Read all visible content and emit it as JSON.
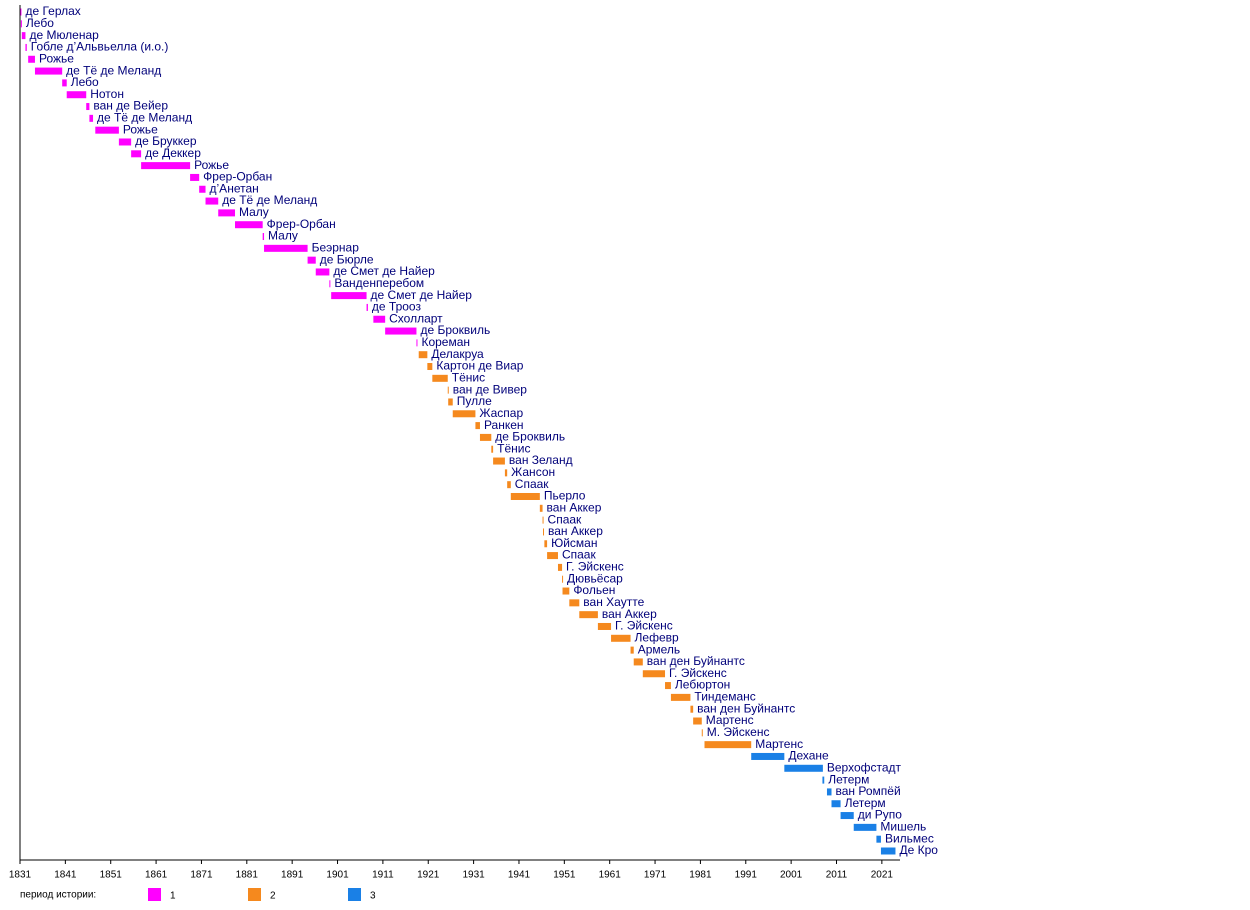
{
  "chart_data": {
    "type": "timeline",
    "categories": [
      "де Герлах",
      "Лебо",
      "де Мюленар",
      "Гобле д’Альвьелла (и.о.)",
      "Рожье",
      "де Тё де Меланд",
      "Лебо",
      "Нотон",
      "ван де Вейер",
      "де Тё де Меланд",
      "Рожье",
      "де Бруккер",
      "де Деккер",
      "Рожье",
      "Фрер-Орбан",
      "д’Анетан",
      "де Тё де Меланд",
      "Малу",
      "Фрер-Орбан",
      "Малу",
      "Беэрнар",
      "де Бюрле",
      "де Смет де Найер",
      "Ванденперебом",
      "де Смет де Найер",
      "де Трооз",
      "Схолларт",
      "де Броквиль",
      "Кореман",
      "Делакруа",
      "Картон де Виар",
      "Тёнис",
      "ван де Вивер",
      "Пулле",
      "Жаспар",
      "Ранкен",
      "де Броквиль",
      "Тёнис",
      "ван Зеланд",
      "Жансон",
      "Спаак",
      "Пьерло",
      "ван Аккер",
      "Спаак",
      "ван Аккер",
      "Юйсман",
      "Спаак",
      "Г. Эйскенс",
      "Дювьёсар",
      "Фольен",
      "ван Хаутте",
      "ван Аккер",
      "Г. Эйскенс",
      "Лефевр",
      "Армель",
      "ван ден Буйнантс",
      "Г. Эйскенс",
      "Лебюртон",
      "Тиндеманс",
      "ван ден Буйнантс",
      "Мартенс",
      "М. Эйскенс",
      "Мартенс",
      "Дехане",
      "Верхофстадт",
      "Летерм",
      "ван Ромпёй",
      "Летерм",
      "ди Рупо",
      "Мишель",
      "Вильмес",
      "Де Кро"
    ],
    "start": [
      1831.1,
      1831.2,
      1831.4,
      1832.2,
      1832.8,
      1834.3,
      1840.3,
      1841.3,
      1845.6,
      1846.3,
      1847.6,
      1852.8,
      1855.5,
      1857.7,
      1868.5,
      1870.5,
      1871.9,
      1874.7,
      1878.4,
      1884.5,
      1884.8,
      1894.4,
      1896.2,
      1899.2,
      1899.6,
      1907.4,
      1908.9,
      1911.5,
      1918.4,
      1918.9,
      1920.8,
      1921.9,
      1925.3,
      1925.4,
      1926.4,
      1931.4,
      1932.4,
      1934.9,
      1935.3,
      1937.9,
      1938.4,
      1939.2,
      1945.6,
      1946.2,
      1946.3,
      1946.6,
      1947.2,
      1949.6,
      1950.5,
      1950.6,
      1952.1,
      1954.3,
      1958.4,
      1961.3,
      1965.6,
      1966.3,
      1968.3,
      1973.2,
      1974.5,
      1978.8,
      1979.4,
      1981.3,
      1981.9,
      1992.2,
      1999.5,
      2007.9,
      2008.9,
      2009.9,
      2011.9,
      2014.8,
      2019.8,
      2020.8
    ],
    "end": [
      1831.2,
      1831.4,
      1832.2,
      1832.5,
      1834.3,
      1840.3,
      1841.3,
      1845.6,
      1846.3,
      1847.1,
      1852.8,
      1855.5,
      1857.7,
      1868.5,
      1870.5,
      1871.9,
      1874.7,
      1878.4,
      1884.5,
      1884.8,
      1894.4,
      1896.2,
      1899.2,
      1899.4,
      1907.4,
      1907.7,
      1911.5,
      1918.4,
      1918.6,
      1920.8,
      1921.9,
      1925.3,
      1925.4,
      1926.4,
      1931.4,
      1932.4,
      1934.9,
      1935.3,
      1937.9,
      1938.4,
      1939.2,
      1945.6,
      1946.2,
      1946.3,
      1946.5,
      1947.2,
      1949.6,
      1950.5,
      1950.6,
      1952.1,
      1954.3,
      1958.4,
      1961.3,
      1965.6,
      1966.3,
      1968.3,
      1973.2,
      1974.5,
      1978.8,
      1979.4,
      1981.3,
      1981.5,
      1992.2,
      1999.5,
      2008.0,
      2008.3,
      2009.9,
      2011.9,
      2014.8,
      2019.8,
      2020.8,
      2024.0
    ],
    "period": [
      1,
      1,
      1,
      1,
      1,
      1,
      1,
      1,
      1,
      1,
      1,
      1,
      1,
      1,
      1,
      1,
      1,
      1,
      1,
      1,
      1,
      1,
      1,
      1,
      1,
      1,
      1,
      1,
      1,
      2,
      2,
      2,
      2,
      2,
      2,
      2,
      2,
      2,
      2,
      2,
      2,
      2,
      2,
      2,
      2,
      2,
      2,
      2,
      2,
      2,
      2,
      2,
      2,
      2,
      2,
      2,
      2,
      2,
      2,
      2,
      2,
      2,
      2,
      3,
      3,
      3,
      3,
      3,
      3,
      3,
      3,
      3
    ],
    "legend_title": "период истории:",
    "periods": [
      {
        "name": "1",
        "color": "#ff00ff"
      },
      {
        "name": "2",
        "color": "#f5891e"
      },
      {
        "name": "3",
        "color": "#1a80e6"
      }
    ],
    "xlim": [
      1831,
      2025
    ],
    "xticks": [
      1831,
      1841,
      1851,
      1861,
      1871,
      1881,
      1891,
      1901,
      1911,
      1921,
      1931,
      1941,
      1951,
      1961,
      1971,
      1981,
      1991,
      2001,
      2011,
      2021
    ]
  }
}
